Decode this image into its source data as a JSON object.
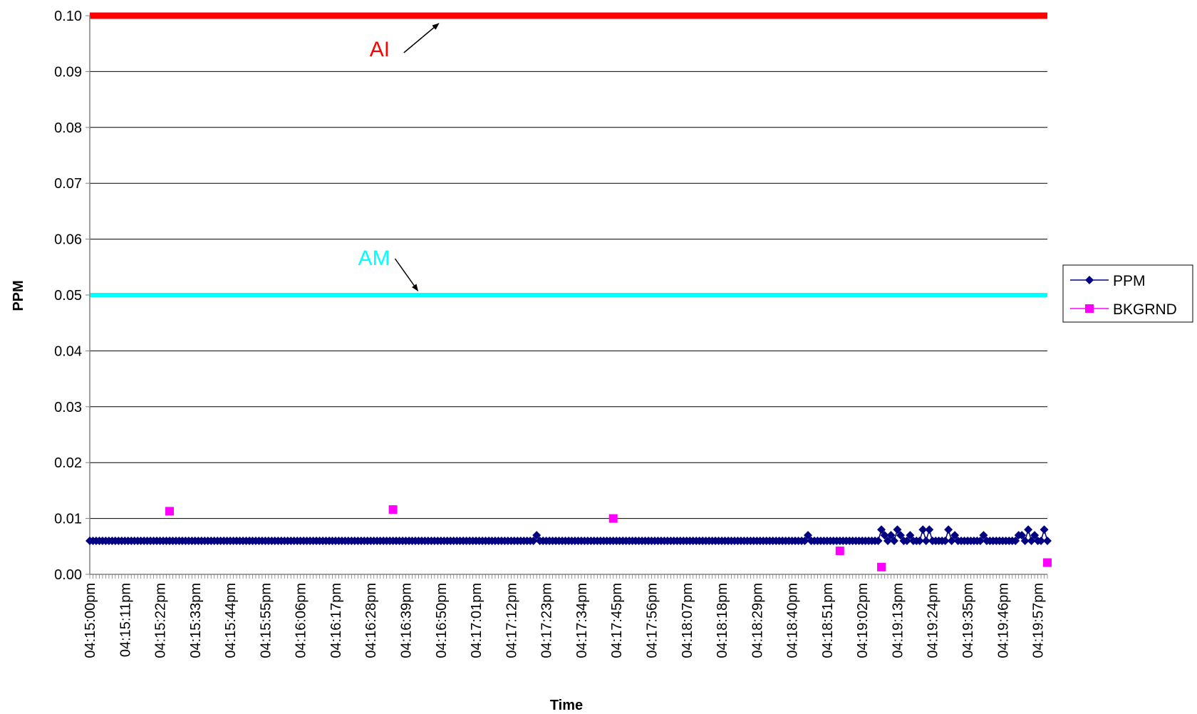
{
  "chart_data": {
    "type": "scatter",
    "xlabel": "Time",
    "ylabel": "PPM",
    "ylim": [
      0,
      0.1
    ],
    "y_ticks": [
      "0.00",
      "0.01",
      "0.02",
      "0.03",
      "0.04",
      "0.05",
      "0.06",
      "0.07",
      "0.08",
      "0.09",
      "0.10"
    ],
    "x_range_seconds": [
      0,
      300
    ],
    "x_tick_labels": [
      "04:15:00pm",
      "04:15:11pm",
      "04:15:22pm",
      "04:15:33pm",
      "04:15:44pm",
      "04:15:55pm",
      "04:16:06pm",
      "04:16:17pm",
      "04:16:28pm",
      "04:16:39pm",
      "04:16:50pm",
      "04:17:01pm",
      "04:17:12pm",
      "04:17:23pm",
      "04:17:34pm",
      "04:17:45pm",
      "04:17:56pm",
      "04:18:07pm",
      "04:18:18pm",
      "04:18:29pm",
      "04:18:40pm",
      "04:18:51pm",
      "04:19:02pm",
      "04:19:13pm",
      "04:19:24pm",
      "04:19:35pm",
      "04:19:46pm",
      "04:19:57pm"
    ],
    "grid": true,
    "legend": "right",
    "series": [
      {
        "name": "PPM",
        "color": "#000080",
        "marker": "diamond",
        "baseline": 0.006,
        "start": "04:15:00pm",
        "end": "04:20:00pm",
        "interval_seconds": 1,
        "peaks": [
          {
            "time": "04:17:20pm",
            "value": 0.007
          },
          {
            "time": "04:18:45pm",
            "value": 0.007
          },
          {
            "time": "04:19:08pm",
            "value": 0.008
          },
          {
            "time": "04:19:09pm",
            "value": 0.007
          },
          {
            "time": "04:19:11pm",
            "value": 0.007
          },
          {
            "time": "04:19:13pm",
            "value": 0.008
          },
          {
            "time": "04:19:14pm",
            "value": 0.007
          },
          {
            "time": "04:19:17pm",
            "value": 0.007
          },
          {
            "time": "04:19:21pm",
            "value": 0.008
          },
          {
            "time": "04:19:23pm",
            "value": 0.008
          },
          {
            "time": "04:19:29pm",
            "value": 0.008
          },
          {
            "time": "04:19:31pm",
            "value": 0.007
          },
          {
            "time": "04:19:40pm",
            "value": 0.007
          },
          {
            "time": "04:19:51pm",
            "value": 0.007
          },
          {
            "time": "04:19:52pm",
            "value": 0.007
          },
          {
            "time": "04:19:54pm",
            "value": 0.008
          },
          {
            "time": "04:19:56pm",
            "value": 0.007
          },
          {
            "time": "04:19:59pm",
            "value": 0.008
          }
        ]
      },
      {
        "name": "BKGRND",
        "color": "#FF00FF",
        "marker": "square",
        "points": [
          {
            "time": "04:15:25pm",
            "value": 0.0113
          },
          {
            "time": "04:16:35pm",
            "value": 0.0116
          },
          {
            "time": "04:17:44pm",
            "value": 0.01
          },
          {
            "time": "04:18:55pm",
            "value": 0.0042
          },
          {
            "time": "04:19:08pm",
            "value": 0.0013
          },
          {
            "time": "04:20:00pm",
            "value": 0.0021
          }
        ]
      }
    ],
    "reference_lines": [
      {
        "label": "AI",
        "value": 0.1,
        "color": "#FF0000",
        "arrow_time": "04:16:50pm"
      },
      {
        "label": "AM",
        "value": 0.05,
        "color": "#00FFFF",
        "arrow_time": "04:16:43pm"
      }
    ]
  }
}
